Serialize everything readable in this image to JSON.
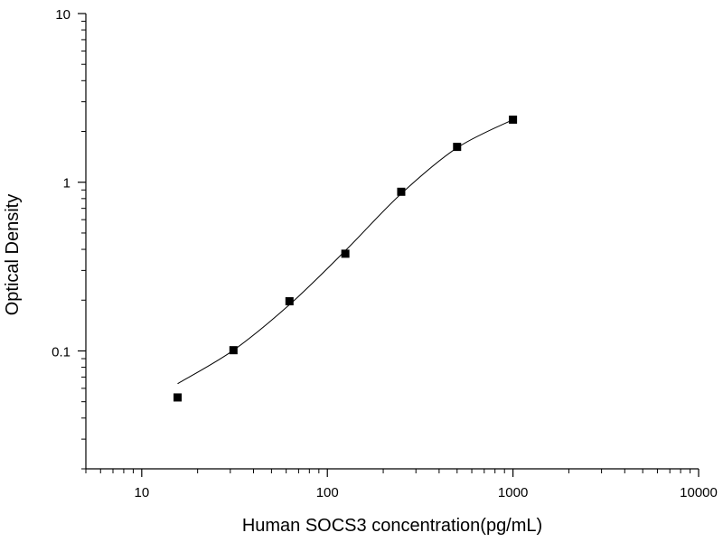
{
  "chart_data": {
    "type": "scatter",
    "xlabel": "Human SOCS3 concentration(pg/mL)",
    "ylabel": "Optical Density",
    "x_scale": "log",
    "y_scale": "log",
    "xlim": [
      5,
      10000
    ],
    "ylim": [
      0.02,
      10
    ],
    "x_ticks": [
      10,
      100,
      1000,
      10000
    ],
    "x_tick_labels": [
      "10",
      "100",
      "1000",
      "10000"
    ],
    "y_ticks": [
      0.1,
      1,
      10
    ],
    "y_tick_labels": [
      "0.1",
      "1",
      "10"
    ],
    "grid": false,
    "series": [
      {
        "points": [
          {
            "x": 15.6,
            "y": 0.053
          },
          {
            "x": 31.2,
            "y": 0.101
          },
          {
            "x": 62.5,
            "y": 0.197
          },
          {
            "x": 125,
            "y": 0.377
          },
          {
            "x": 250,
            "y": 0.878
          },
          {
            "x": 500,
            "y": 1.62
          },
          {
            "x": 1000,
            "y": 2.35
          }
        ],
        "marker": "square",
        "color": "#000000"
      },
      {
        "type": "line",
        "points": [
          {
            "x": 15.6,
            "y": 0.064
          },
          {
            "x": 31.2,
            "y": 0.101
          },
          {
            "x": 62.5,
            "y": 0.188
          },
          {
            "x": 125,
            "y": 0.393
          },
          {
            "x": 250,
            "y": 0.855
          },
          {
            "x": 500,
            "y": 1.6
          },
          {
            "x": 1000,
            "y": 2.35
          }
        ],
        "color": "#000000"
      }
    ]
  }
}
